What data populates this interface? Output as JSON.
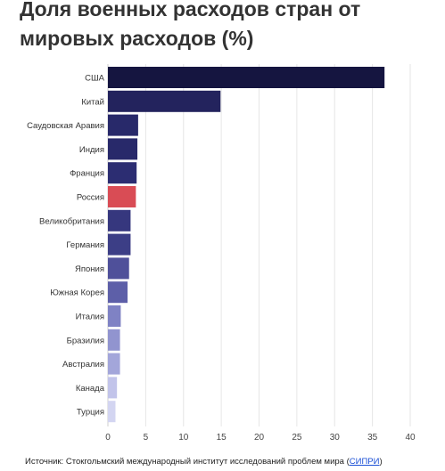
{
  "title": "Доля военных расходов стран от\nмировых расходов (%)",
  "source": {
    "text": "Источник: Стокгольмский международный институт исследований проблем мира (",
    "link_text": "СИПРИ",
    "close": ")"
  },
  "colors": {
    "grid": "#e6e6e6",
    "highlight": "#d94c55",
    "link": "#1a4fd6"
  },
  "chart_data": {
    "type": "bar",
    "orientation": "horizontal",
    "categories": [
      "США",
      "Китай",
      "Саудовская Аравия",
      "Индия",
      "Франция",
      "Россия",
      "Великобритания",
      "Германия",
      "Япония",
      "Южная Корея",
      "Италия",
      "Бразилия",
      "Австралия",
      "Канада",
      "Турция"
    ],
    "values": [
      36.6,
      14.9,
      4.0,
      3.9,
      3.8,
      3.7,
      3.0,
      3.0,
      2.8,
      2.6,
      1.7,
      1.6,
      1.6,
      1.2,
      1.0
    ],
    "colors": [
      "#151540",
      "#23235d",
      "#28296a",
      "#28296a",
      "#2c2d72",
      "#d94c55",
      "#36377e",
      "#3c3e86",
      "#4f509a",
      "#5d5fa8",
      "#7f82c4",
      "#9194cf",
      "#a3a6da",
      "#c2c4ea",
      "#d3d5f1"
    ],
    "xlim": [
      0,
      40
    ],
    "xticks": [
      0,
      5,
      10,
      15,
      20,
      25,
      30,
      35,
      40
    ],
    "grid": true,
    "legend": "none"
  }
}
